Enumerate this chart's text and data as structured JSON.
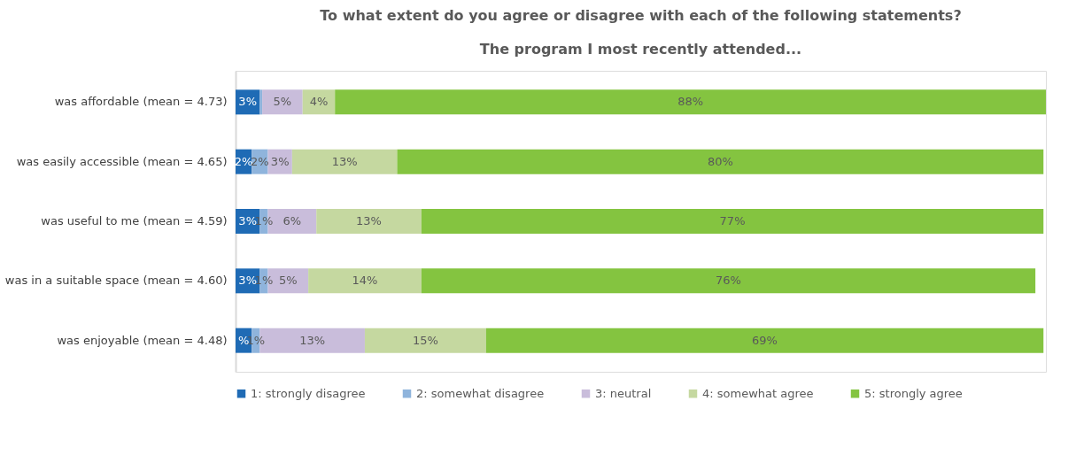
{
  "chart_data": {
    "type": "bar",
    "orientation": "horizontal",
    "stacked": true,
    "title": "To what extent do you agree or disagree with each of the following statements?",
    "subtitle": "The program I most recently attended...",
    "categories": [
      "was affordable (mean = 4.73)",
      "was easily accessible (mean = 4.65)",
      "was useful to me (mean = 4.59)",
      "was in a suitable space (mean = 4.60)",
      "was enjoyable (mean = 4.48)"
    ],
    "series": [
      {
        "name": "1: strongly disagree",
        "color": "#1f6bb5",
        "values": [
          3,
          2,
          3,
          3,
          2
        ],
        "value_labels": [
          "3%",
          "2%",
          "3%",
          "3%",
          "%"
        ]
      },
      {
        "name": "2: somewhat disagree",
        "color": "#8fb4dc",
        "values": [
          0.3,
          2,
          1,
          1,
          1
        ],
        "value_labels": [
          null,
          "2%",
          "1%",
          "1%",
          "1%"
        ]
      },
      {
        "name": "3: neutral",
        "color": "#c9bddb",
        "values": [
          5,
          3,
          6,
          5,
          13
        ],
        "value_labels": [
          "5%",
          "3%",
          "6%",
          "5%",
          "13%"
        ]
      },
      {
        "name": "4: somewhat agree",
        "color": "#c5d8a0",
        "values": [
          4,
          13,
          13,
          14,
          15
        ],
        "value_labels": [
          "4%",
          "13%",
          "13%",
          "14%",
          "15%"
        ]
      },
      {
        "name": "5: strongly agree",
        "color": "#84c440",
        "values": [
          88,
          80,
          77,
          76,
          69
        ],
        "value_labels": [
          "88%",
          "80%",
          "77%",
          "76%",
          "69%"
        ]
      }
    ],
    "legend": "bottom",
    "grid": false,
    "tick_labels": "y"
  }
}
